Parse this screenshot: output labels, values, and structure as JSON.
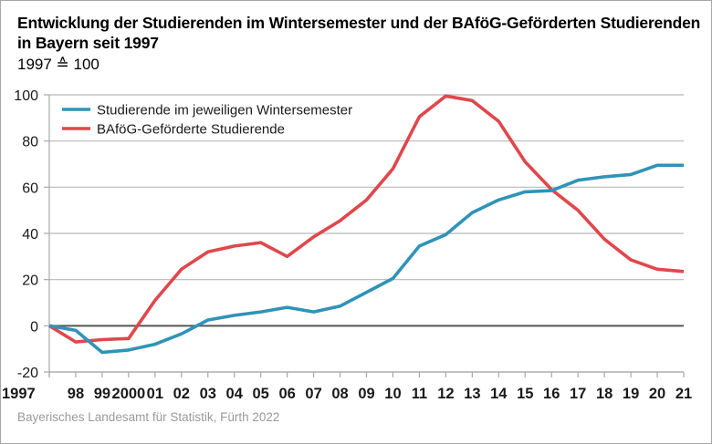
{
  "chart_data": {
    "type": "line",
    "title": "Entwicklung der Studierenden im Wintersemester und der BAföG-Geförderten Studierenden in Bayern seit 1997",
    "subtitle": "1997 ≙ 100",
    "xlabel": "",
    "ylabel": "",
    "ylim": [
      -20,
      100
    ],
    "yticks": [
      100,
      80,
      60,
      40,
      20,
      0,
      -20
    ],
    "x": [
      1997,
      1998,
      1999,
      2000,
      2001,
      2002,
      2003,
      2004,
      2005,
      2006,
      2007,
      2008,
      2009,
      2010,
      2011,
      2012,
      2013,
      2014,
      2015,
      2016,
      2017,
      2018,
      2019,
      2020,
      2021
    ],
    "xtick_labels": [
      "1997",
      "98",
      "99",
      "2000",
      "01",
      "02",
      "03",
      "04",
      "05",
      "06",
      "07",
      "08",
      "09",
      "10",
      "11",
      "12",
      "13",
      "14",
      "15",
      "16",
      "17",
      "18",
      "19",
      "20",
      "21"
    ],
    "grid": true,
    "legend_position": "top-left",
    "series": [
      {
        "name": "Studierende im jeweiligen Wintersemester",
        "color": "#2f93b8",
        "values": [
          0,
          -2,
          -11.5,
          -10.5,
          -8,
          -3.5,
          2.5,
          4.5,
          6,
          8,
          6,
          8.5,
          14.5,
          20.5,
          34.5,
          39.5,
          49,
          54.5,
          58,
          58.5,
          63,
          64.5,
          65.5,
          69.5,
          69.5
        ]
      },
      {
        "name": "BAföG-Geförderte Studierende",
        "color": "#e0474c",
        "values": [
          0,
          -7,
          -6,
          -5.5,
          11,
          24.5,
          32,
          34.5,
          36,
          30,
          38.5,
          45.5,
          54.5,
          68,
          90.5,
          99.5,
          97.5,
          88.5,
          71,
          59,
          50,
          37.5,
          28.5,
          24.5,
          23.5
        ]
      }
    ],
    "source": "Bayerisches Landesamt für Statistik, Fürth 2022"
  }
}
